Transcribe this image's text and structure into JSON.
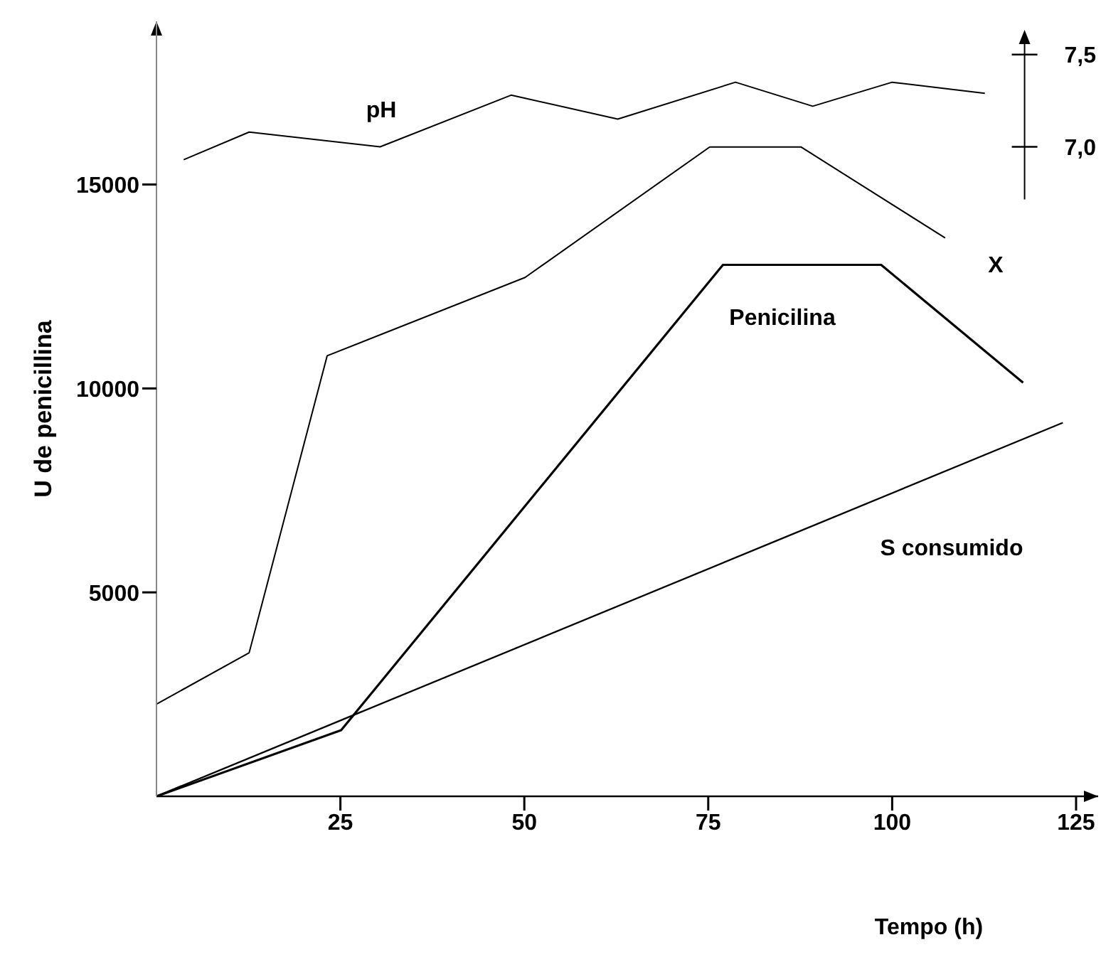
{
  "chart_data": {
    "type": "line",
    "xlabel": "Tempo (h)",
    "ylabel": "U de penicillina",
    "xlim": [
      0,
      128
    ],
    "xticks": [
      25,
      50,
      75,
      100,
      125
    ],
    "ylim": [
      0,
      19000
    ],
    "yticks": [
      5000,
      10000,
      15000
    ],
    "y2lim": [
      3.48,
      7.68
    ],
    "y2ticks": [
      {
        "value": 7.0,
        "label": "7,0"
      },
      {
        "value": 7.5,
        "label": "7,5"
      }
    ],
    "legend": false,
    "series": [
      {
        "name": "pH",
        "color": "#000000",
        "axis": "y2",
        "x": [
          3.7,
          12.6,
          30.4,
          48.2,
          62.7,
          78.7,
          89.2,
          100,
          112.6
        ],
        "values": [
          6.93,
          7.08,
          7.0,
          7.28,
          7.15,
          7.35,
          7.22,
          7.35,
          7.29
        ]
      },
      {
        "name": "X",
        "color": "#000000",
        "x": [
          0,
          12.6,
          23.2,
          50.1,
          75.2,
          87.6,
          107.2
        ],
        "values": [
          2260,
          3520,
          10800,
          12720,
          15920,
          15920,
          13690
        ]
      },
      {
        "name": "Penicilina",
        "color": "#000000",
        "x": [
          0,
          25.1,
          77,
          98.5,
          117.8
        ],
        "values": [
          0,
          1620,
          13030,
          13030,
          10140
        ]
      },
      {
        "name": "S consumido",
        "color": "#000000",
        "x": [
          0,
          123.2
        ],
        "values": [
          0,
          9160
        ]
      }
    ]
  }
}
